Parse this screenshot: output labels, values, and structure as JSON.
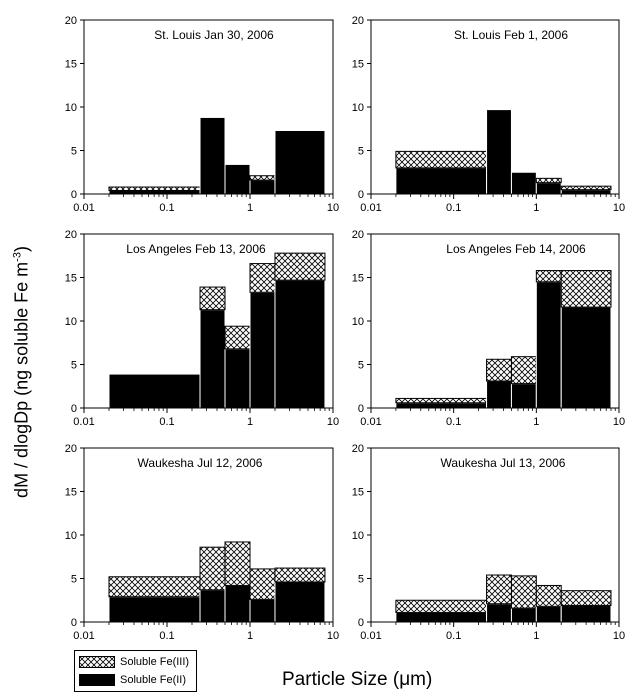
{
  "figure": {
    "ylabel_main": "dM / dlogDp (ng soluble Fe m",
    "ylabel_sup": "-3",
    "ylabel_end": ")",
    "xlabel_main": "Particle Size (",
    "xlabel_mu": "μ",
    "xlabel_end": "m)"
  },
  "legend": [
    {
      "label": "Soluble Fe(III)",
      "pattern": "crosshatch"
    },
    {
      "label": "Soluble Fe(II)",
      "pattern": "solid-black"
    }
  ],
  "chart_data": [
    {
      "type": "bar",
      "stacked": true,
      "title": "St. Louis Jan 30, 2006",
      "x_scale": "log",
      "xlim": [
        0.01,
        10
      ],
      "ylim": [
        0,
        20
      ],
      "yticks": [
        0,
        5,
        10,
        15,
        20
      ],
      "xticks": [
        {
          "v": 0.01,
          "label": "0.01"
        },
        {
          "v": 0.1,
          "label": "0.1"
        },
        {
          "v": 1,
          "label": "1"
        },
        {
          "v": 10,
          "label": "10"
        }
      ],
      "bins": [
        [
          0.02,
          0.25
        ],
        [
          0.25,
          0.5
        ],
        [
          0.5,
          1.0
        ],
        [
          1.0,
          2.0
        ],
        [
          2.0,
          8.0
        ]
      ],
      "series": [
        {
          "name": "Soluble Fe(II)",
          "values": [
            0.4,
            8.8,
            3.4,
            1.6,
            7.3
          ]
        },
        {
          "name": "Soluble Fe(III)",
          "values": [
            0.4,
            0,
            0,
            0.5,
            0
          ]
        }
      ]
    },
    {
      "type": "bar",
      "stacked": true,
      "title": "St. Louis Feb 1, 2006",
      "x_scale": "log",
      "xlim": [
        0.01,
        10
      ],
      "ylim": [
        0,
        20
      ],
      "yticks": [
        0,
        5,
        10,
        15,
        20
      ],
      "xticks": [
        {
          "v": 0.01,
          "label": "0.01"
        },
        {
          "v": 0.1,
          "label": "0.1"
        },
        {
          "v": 1,
          "label": "1"
        },
        {
          "v": 10,
          "label": "10"
        }
      ],
      "bins": [
        [
          0.02,
          0.25
        ],
        [
          0.25,
          0.5
        ],
        [
          0.5,
          1.0
        ],
        [
          1.0,
          2.0
        ],
        [
          2.0,
          8.0
        ]
      ],
      "series": [
        {
          "name": "Soluble Fe(II)",
          "values": [
            3.0,
            9.7,
            2.5,
            1.3,
            0.5
          ]
        },
        {
          "name": "Soluble Fe(III)",
          "values": [
            1.9,
            0,
            0,
            0.5,
            0.4
          ]
        }
      ]
    },
    {
      "type": "bar",
      "stacked": true,
      "title": "Los Angeles Feb 13, 2006",
      "x_scale": "log",
      "xlim": [
        0.01,
        10
      ],
      "ylim": [
        0,
        20
      ],
      "yticks": [
        0,
        5,
        10,
        15,
        20
      ],
      "xticks": [
        {
          "v": 0.01,
          "label": "0.01"
        },
        {
          "v": 0.1,
          "label": "0.1"
        },
        {
          "v": 1,
          "label": "1"
        },
        {
          "v": 10,
          "label": "10"
        }
      ],
      "bins": [
        [
          0.02,
          0.25
        ],
        [
          0.25,
          0.5
        ],
        [
          0.5,
          1.0
        ],
        [
          1.0,
          2.0
        ],
        [
          2.0,
          8.0
        ]
      ],
      "series": [
        {
          "name": "Soluble Fe(II)",
          "values": [
            3.9,
            11.3,
            6.8,
            13.3,
            14.7
          ]
        },
        {
          "name": "Soluble Fe(III)",
          "values": [
            0,
            2.6,
            2.6,
            3.3,
            3.1
          ]
        }
      ]
    },
    {
      "type": "bar",
      "stacked": true,
      "title": "Los Angeles Feb 14, 2006",
      "x_scale": "log",
      "xlim": [
        0.01,
        10
      ],
      "ylim": [
        0,
        20
      ],
      "yticks": [
        0,
        5,
        10,
        15,
        20
      ],
      "xticks": [
        {
          "v": 0.01,
          "label": "0.01"
        },
        {
          "v": 0.1,
          "label": "0.1"
        },
        {
          "v": 1,
          "label": "1"
        },
        {
          "v": 10,
          "label": "10"
        }
      ],
      "bins": [
        [
          0.02,
          0.25
        ],
        [
          0.25,
          0.5
        ],
        [
          0.5,
          1.0
        ],
        [
          1.0,
          2.0
        ],
        [
          2.0,
          8.0
        ]
      ],
      "series": [
        {
          "name": "Soluble Fe(II)",
          "values": [
            0.6,
            3.1,
            2.8,
            14.5,
            11.6
          ]
        },
        {
          "name": "Soluble Fe(III)",
          "values": [
            0.5,
            2.5,
            3.1,
            1.3,
            4.2
          ]
        }
      ]
    },
    {
      "type": "bar",
      "stacked": true,
      "title": "Waukesha Jul 12, 2006",
      "x_scale": "log",
      "xlim": [
        0.01,
        10
      ],
      "ylim": [
        0,
        20
      ],
      "yticks": [
        0,
        5,
        10,
        15,
        20
      ],
      "xticks": [
        {
          "v": 0.01,
          "label": "0.01"
        },
        {
          "v": 0.1,
          "label": "0.1"
        },
        {
          "v": 1,
          "label": "1"
        },
        {
          "v": 10,
          "label": "10"
        }
      ],
      "bins": [
        [
          0.02,
          0.25
        ],
        [
          0.25,
          0.5
        ],
        [
          0.5,
          1.0
        ],
        [
          1.0,
          2.0
        ],
        [
          2.0,
          8.0
        ]
      ],
      "series": [
        {
          "name": "Soluble Fe(II)",
          "values": [
            2.9,
            3.7,
            4.2,
            2.6,
            4.6
          ]
        },
        {
          "name": "Soluble Fe(III)",
          "values": [
            2.3,
            4.9,
            5.0,
            3.5,
            1.6
          ]
        }
      ]
    },
    {
      "type": "bar",
      "stacked": true,
      "title": "Waukesha Jul 13, 2006",
      "x_scale": "log",
      "xlim": [
        0.01,
        10
      ],
      "ylim": [
        0,
        20
      ],
      "yticks": [
        0,
        5,
        10,
        15,
        20
      ],
      "xticks": [
        {
          "v": 0.01,
          "label": "0.01"
        },
        {
          "v": 0.1,
          "label": "0.1"
        },
        {
          "v": 1,
          "label": "1"
        },
        {
          "v": 10,
          "label": "10"
        }
      ],
      "bins": [
        [
          0.02,
          0.25
        ],
        [
          0.25,
          0.5
        ],
        [
          0.5,
          1.0
        ],
        [
          1.0,
          2.0
        ],
        [
          2.0,
          8.0
        ]
      ],
      "series": [
        {
          "name": "Soluble Fe(II)",
          "values": [
            1.1,
            2.1,
            1.6,
            1.8,
            1.9
          ]
        },
        {
          "name": "Soluble Fe(III)",
          "values": [
            1.4,
            3.3,
            3.7,
            2.4,
            1.7
          ]
        }
      ]
    }
  ]
}
